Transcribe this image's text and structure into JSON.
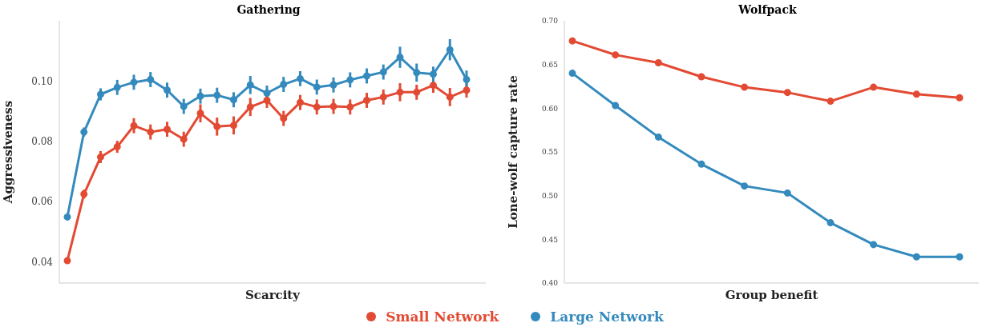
{
  "chart_data": [
    {
      "type": "line",
      "title": "Gathering",
      "xlabel": "Scarcity",
      "ylabel": "Aggressiveness",
      "categories": [
        null,
        null,
        null,
        null,
        null,
        null,
        null,
        null,
        null,
        null,
        null,
        null,
        null,
        null,
        null,
        null,
        null,
        null,
        null,
        null,
        null,
        null,
        null,
        null,
        null
      ],
      "series": [
        {
          "name": "Small Network",
          "color": "#e24a33",
          "values": [
            0.0404,
            0.0625,
            0.0748,
            0.0782,
            0.0852,
            0.0831,
            0.084,
            0.0807,
            0.0893,
            0.0849,
            0.0853,
            0.0914,
            0.0936,
            0.0876,
            0.0929,
            0.0914,
            0.0916,
            0.0914,
            0.0936,
            0.0947,
            0.0963,
            0.0963,
            0.0986,
            0.0947,
            0.097
          ],
          "errors": [
            0.001,
            0.0015,
            0.002,
            0.002,
            0.0025,
            0.0025,
            0.0025,
            0.0025,
            0.003,
            0.003,
            0.003,
            0.003,
            0.0025,
            0.0025,
            0.0025,
            0.0025,
            0.0025,
            0.0025,
            0.0025,
            0.0025,
            0.003,
            0.0025,
            0.0025,
            0.003,
            0.0025
          ]
        },
        {
          "name": "Large Network",
          "color": "#348abd",
          "values": [
            0.0549,
            0.0831,
            0.0956,
            0.0979,
            0.0996,
            0.1005,
            0.097,
            0.0916,
            0.095,
            0.0953,
            0.0938,
            0.0987,
            0.096,
            0.0989,
            0.1008,
            0.098,
            0.0987,
            0.1004,
            0.1017,
            0.103,
            0.1079,
            0.1028,
            0.1023,
            0.1104,
            0.1005
          ],
          "errors": [
            0.001,
            0.0015,
            0.002,
            0.0025,
            0.0025,
            0.0025,
            0.0025,
            0.0025,
            0.0025,
            0.0025,
            0.0025,
            0.003,
            0.0025,
            0.0025,
            0.0025,
            0.0025,
            0.0025,
            0.0025,
            0.0025,
            0.0025,
            0.0035,
            0.003,
            0.0025,
            0.0035,
            0.003
          ]
        }
      ],
      "ylim": [
        0.033,
        0.12
      ],
      "yticks": [
        {
          "value": 0.04,
          "label": "0.04"
        },
        {
          "value": 0.06,
          "label": "0.06"
        },
        {
          "value": 0.08,
          "label": "0.08"
        },
        {
          "value": 0.1,
          "label": "0.10"
        }
      ],
      "grid": false,
      "legend": "bottom",
      "marker": "circle",
      "line_style": "solid",
      "tick_labels": "y"
    },
    {
      "type": "line",
      "title": "Wolfpack",
      "xlabel": "Group benefit",
      "ylabel": "Lone-wolf capture rate",
      "categories": [
        null,
        null,
        null,
        null,
        null,
        null,
        null,
        null,
        null,
        null
      ],
      "series": [
        {
          "name": "Small Network",
          "color": "#e24a33",
          "values": [
            0.677,
            0.661,
            0.652,
            0.636,
            0.624,
            0.618,
            0.608,
            0.624,
            0.616,
            0.612
          ]
        },
        {
          "name": "Large Network",
          "color": "#348abd",
          "values": [
            0.64,
            0.603,
            0.567,
            0.536,
            0.511,
            0.503,
            0.469,
            0.444,
            0.43,
            0.43
          ]
        }
      ],
      "ylim": [
        0.4,
        0.7
      ],
      "yticks": [
        {
          "value": 0.4,
          "label": "0.40"
        },
        {
          "value": 0.45,
          "label": "0.45"
        },
        {
          "value": 0.5,
          "label": "0.50"
        },
        {
          "value": 0.55,
          "label": "0.55"
        },
        {
          "value": 0.6,
          "label": "0.60"
        },
        {
          "value": 0.65,
          "label": "0.65"
        },
        {
          "value": 0.7,
          "label": "0.70"
        }
      ],
      "grid": false,
      "legend": "bottom",
      "marker": "circle",
      "line_style": "solid",
      "tick_labels": "y"
    }
  ]
}
